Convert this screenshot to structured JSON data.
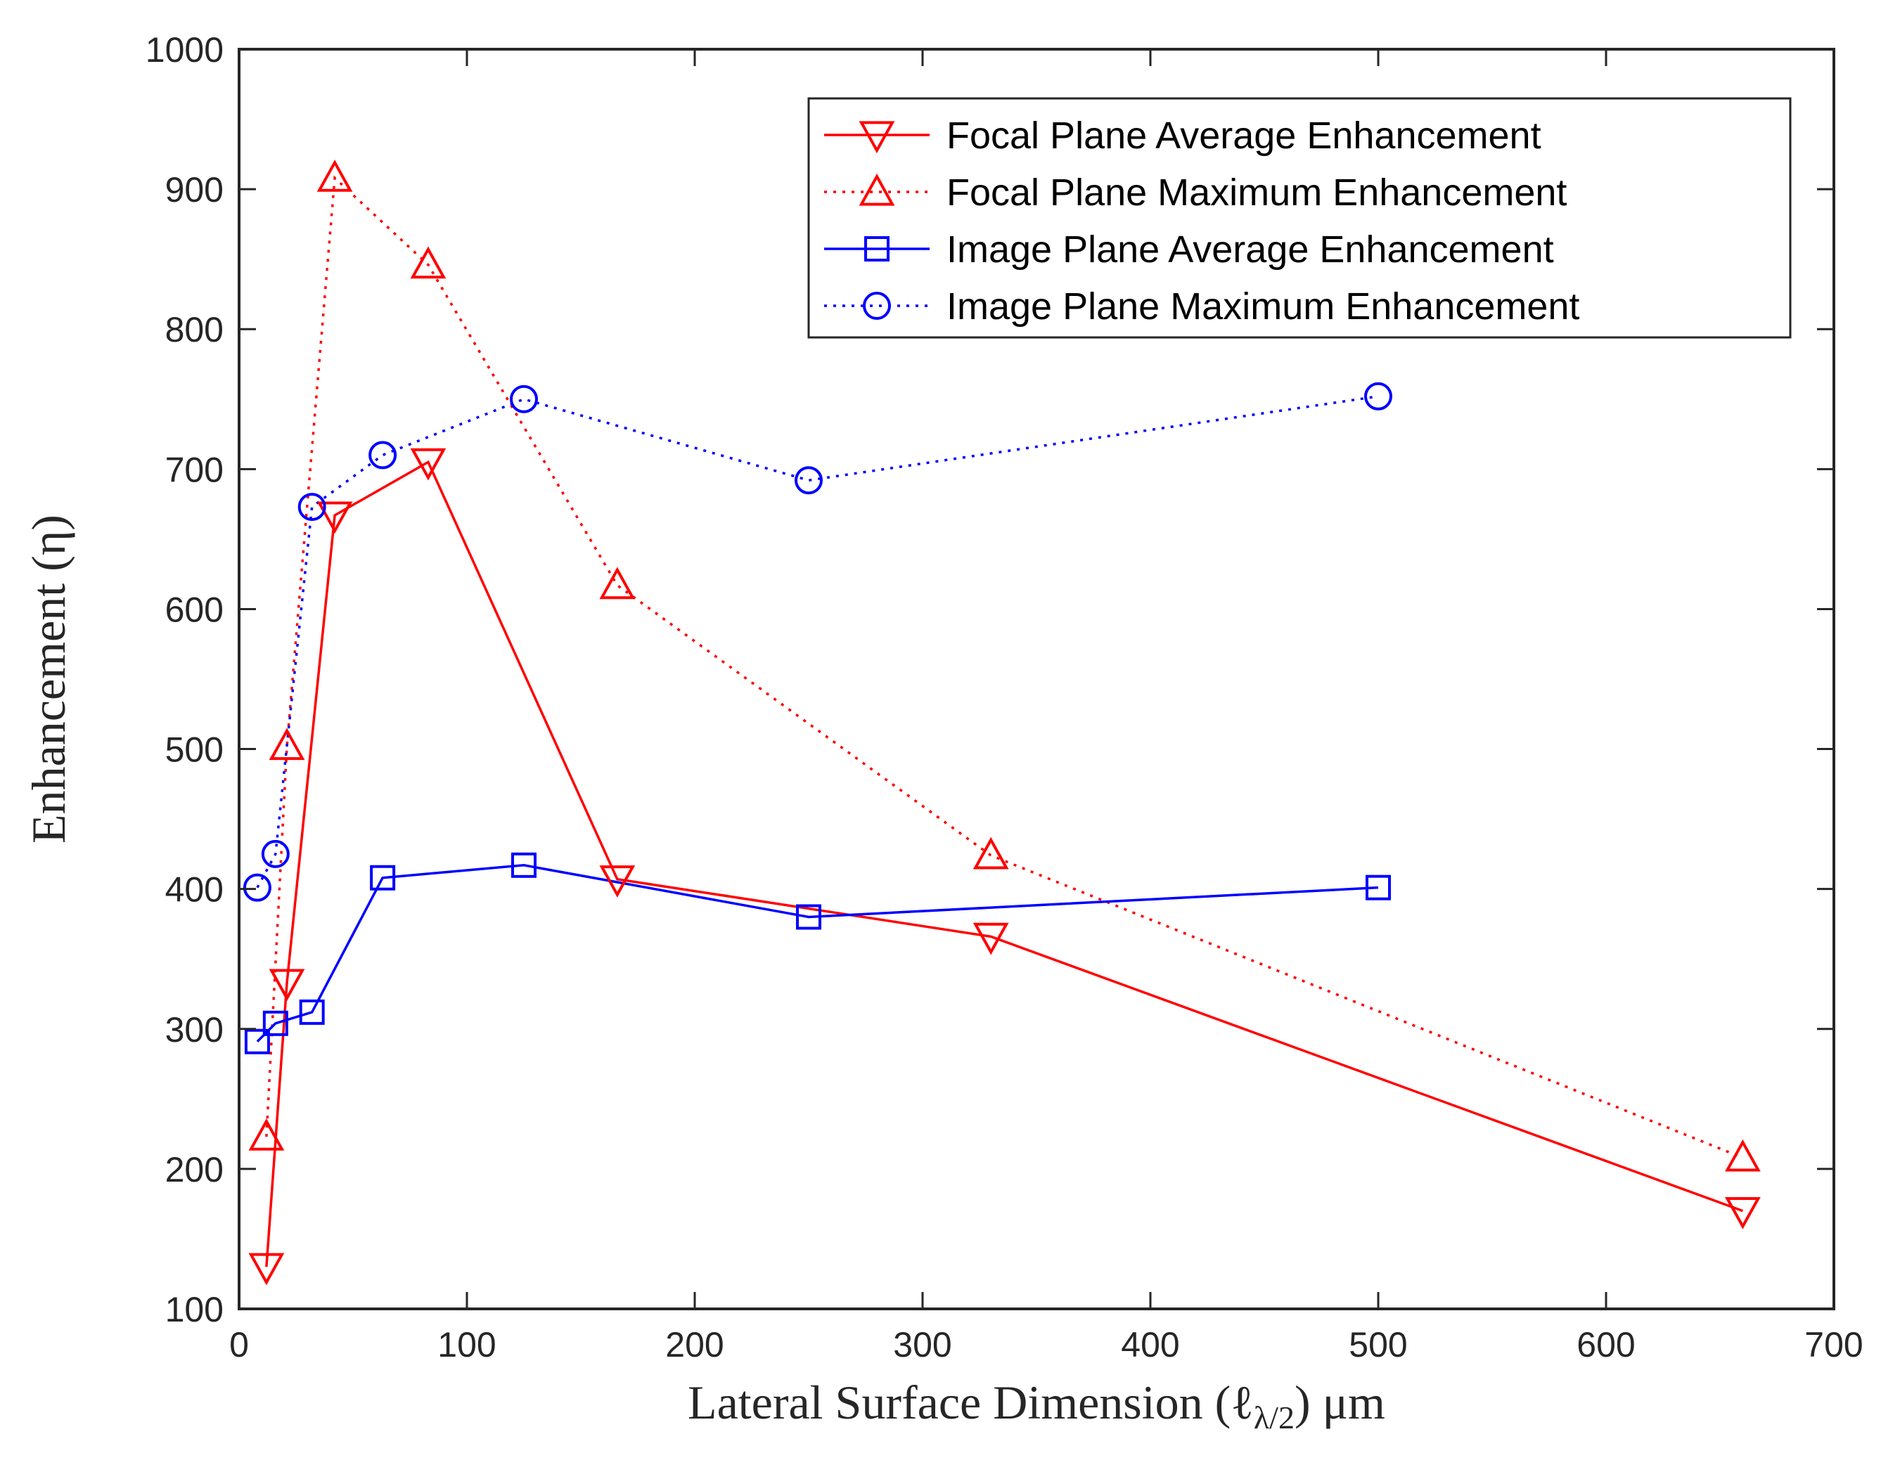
{
  "chart_data": {
    "type": "line",
    "title": "",
    "xlabel": "Lateral Surface Dimension (ℓλ/2) μm",
    "xlabel_parts": {
      "main": "Lateral Surface Dimension (ℓ",
      "sub": "λ/2",
      "tail": ") μm"
    },
    "ylabel": "Enhancement (η)",
    "xlim": [
      0,
      700
    ],
    "ylim": [
      100,
      1000
    ],
    "xticks": [
      "0",
      "100",
      "200",
      "300",
      "400",
      "500",
      "600",
      "700"
    ],
    "yticks": [
      "100",
      "200",
      "300",
      "400",
      "500",
      "600",
      "700",
      "800",
      "900",
      "1000"
    ],
    "grid": false,
    "legend_position": "top-right",
    "series": [
      {
        "name": "Focal Plane Average Enhancement",
        "color": "#ff0000",
        "line_style": "solid",
        "marker": "triangle-down",
        "x": [
          12,
          21,
          42,
          83,
          166,
          330,
          660
        ],
        "y": [
          130,
          333,
          667,
          705,
          407,
          366,
          170
        ]
      },
      {
        "name": "Focal Plane Maximum Enhancement",
        "color": "#ff0000",
        "line_style": "dotted",
        "marker": "triangle-up",
        "x": [
          12,
          21,
          42,
          83,
          166,
          330,
          660
        ],
        "y": [
          223,
          502,
          908,
          846,
          617,
          424,
          208
        ]
      },
      {
        "name": "Image Plane Average Enhancement",
        "color": "#0000ff",
        "line_style": "solid",
        "marker": "square",
        "x": [
          8,
          16,
          32,
          63,
          125,
          250,
          500
        ],
        "y": [
          291,
          304,
          312,
          408,
          417,
          380,
          401
        ]
      },
      {
        "name": "Image Plane Maximum Enhancement",
        "color": "#0000ff",
        "line_style": "dotted",
        "marker": "circle",
        "x": [
          8,
          16,
          32,
          63,
          125,
          250,
          500
        ],
        "y": [
          401,
          425,
          673,
          710,
          750,
          692,
          752
        ]
      }
    ]
  }
}
